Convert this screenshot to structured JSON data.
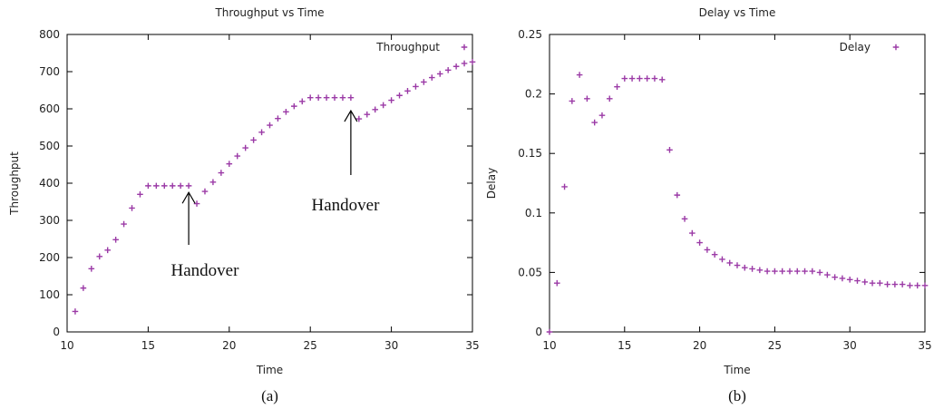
{
  "chart_data": [
    {
      "id": "throughput",
      "type": "scatter",
      "title": "Throughput vs Time",
      "xlabel": "Time",
      "ylabel": "Throughput",
      "xlim": [
        10,
        35
      ],
      "ylim": [
        0,
        800
      ],
      "xticks": [
        10,
        15,
        20,
        25,
        30,
        35
      ],
      "yticks": [
        0,
        100,
        200,
        300,
        400,
        500,
        600,
        700,
        800
      ],
      "grid": false,
      "legend_position": "top-right",
      "series": [
        {
          "name": "Throughput",
          "color": "#9b3aa6",
          "marker": "plus",
          "x": [
            10.5,
            11,
            11.5,
            12,
            12.5,
            13,
            13.5,
            14,
            14.5,
            15,
            15.5,
            16,
            16.5,
            17,
            17.5,
            18,
            18.5,
            19,
            19.5,
            20,
            20.5,
            21,
            21.5,
            22,
            22.5,
            23,
            23.5,
            24,
            24.5,
            25,
            25.5,
            26,
            26.5,
            27,
            27.5,
            28,
            28.5,
            29,
            29.5,
            30,
            30.5,
            31,
            31.5,
            32,
            32.5,
            33,
            33.5,
            34,
            34.5,
            35
          ],
          "y": [
            55,
            118,
            170,
            203,
            220,
            248,
            290,
            333,
            370,
            393,
            393,
            393,
            393,
            393,
            393,
            345,
            378,
            403,
            428,
            452,
            473,
            495,
            516,
            537,
            556,
            574,
            592,
            607,
            620,
            630,
            630,
            630,
            630,
            630,
            630,
            573,
            585,
            598,
            610,
            623,
            636,
            648,
            660,
            672,
            684,
            694,
            704,
            714,
            722,
            726
          ]
        }
      ],
      "annotations": [
        {
          "text": "Handover",
          "arrow_x": 17.5,
          "arrow_y": 375
        },
        {
          "text": "Handover",
          "arrow_x": 27.5,
          "arrow_y": 595
        }
      ],
      "caption": "(a)"
    },
    {
      "id": "delay",
      "type": "scatter",
      "title": "Delay vs Time",
      "xlabel": "Time",
      "ylabel": "Delay",
      "xlim": [
        10,
        35
      ],
      "ylim": [
        0,
        0.25
      ],
      "xticks": [
        10,
        15,
        20,
        25,
        30,
        35
      ],
      "yticks": [
        0,
        0.05,
        0.1,
        0.15,
        0.2,
        0.25
      ],
      "grid": false,
      "legend_position": "top-right",
      "series": [
        {
          "name": "Delay",
          "color": "#9b3aa6",
          "marker": "plus",
          "x": [
            10,
            10.5,
            11,
            11.5,
            12,
            12.5,
            13,
            13.5,
            14,
            14.5,
            15,
            15.5,
            16,
            16.5,
            17,
            17.5,
            18,
            18.5,
            19,
            19.5,
            20,
            20.5,
            21,
            21.5,
            22,
            22.5,
            23,
            23.5,
            24,
            24.5,
            25,
            25.5,
            26,
            26.5,
            27,
            27.5,
            28,
            28.5,
            29,
            29.5,
            30,
            30.5,
            31,
            31.5,
            32,
            32.5,
            33,
            33.5,
            34,
            34.5,
            35
          ],
          "y": [
            0,
            0.041,
            0.122,
            0.194,
            0.216,
            0.196,
            0.176,
            0.182,
            0.196,
            0.206,
            0.213,
            0.213,
            0.213,
            0.213,
            0.213,
            0.212,
            0.153,
            0.115,
            0.095,
            0.083,
            0.075,
            0.069,
            0.065,
            0.061,
            0.058,
            0.056,
            0.054,
            0.053,
            0.052,
            0.051,
            0.051,
            0.051,
            0.051,
            0.051,
            0.051,
            0.051,
            0.05,
            0.048,
            0.046,
            0.045,
            0.044,
            0.043,
            0.042,
            0.041,
            0.041,
            0.04,
            0.04,
            0.04,
            0.039,
            0.039,
            0.039
          ]
        }
      ],
      "caption": "(b)"
    }
  ]
}
